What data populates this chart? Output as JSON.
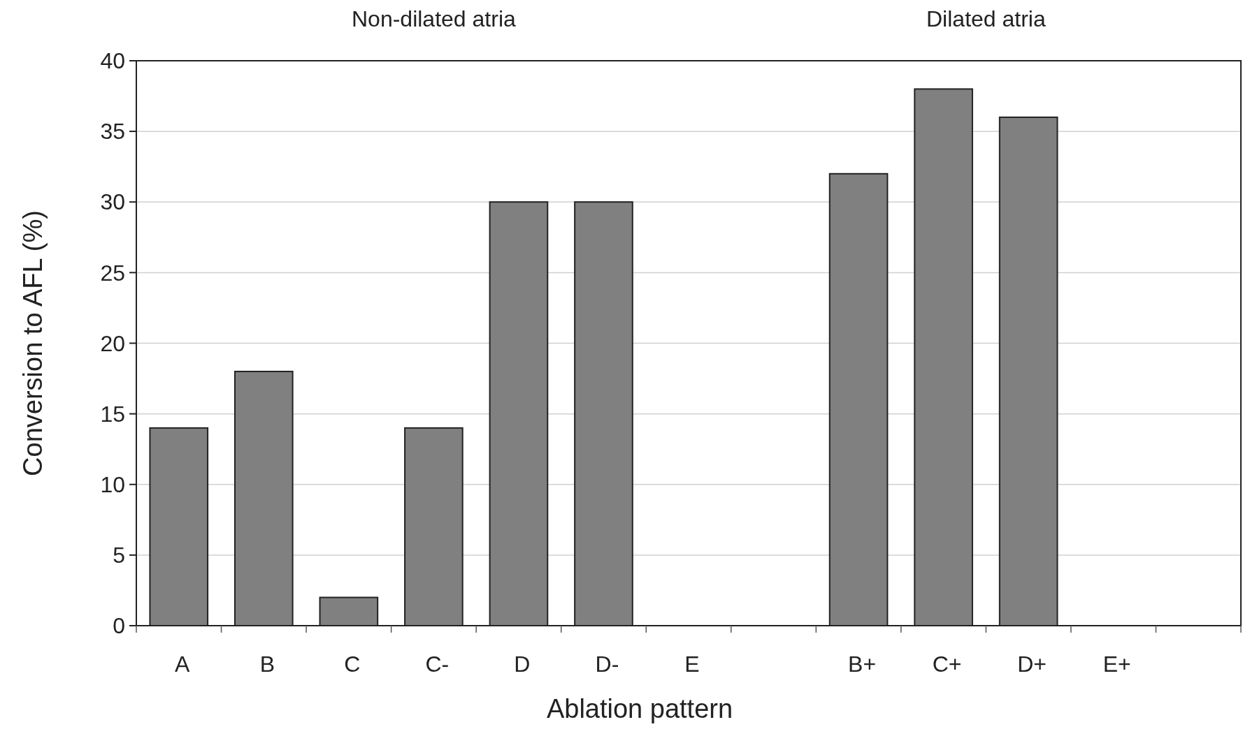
{
  "chart_data": {
    "type": "bar",
    "xlabel": "Ablation pattern",
    "ylabel": "Conversion to AFL (%)",
    "categories": [
      "A",
      "B",
      "C",
      "C-",
      "D",
      "D-",
      "E",
      null,
      "B+",
      "C+",
      "D+",
      "E+",
      null
    ],
    "values": [
      14,
      18,
      2,
      14,
      30,
      30,
      0,
      null,
      32,
      38,
      36,
      0,
      null
    ],
    "color": "#808080",
    "ylim": [
      0,
      40
    ],
    "yticks": [
      0,
      5,
      10,
      15,
      20,
      25,
      30,
      35,
      40
    ],
    "grid": "y",
    "annotations": [
      "Non-dilated atria",
      "Dilated atria"
    ]
  }
}
